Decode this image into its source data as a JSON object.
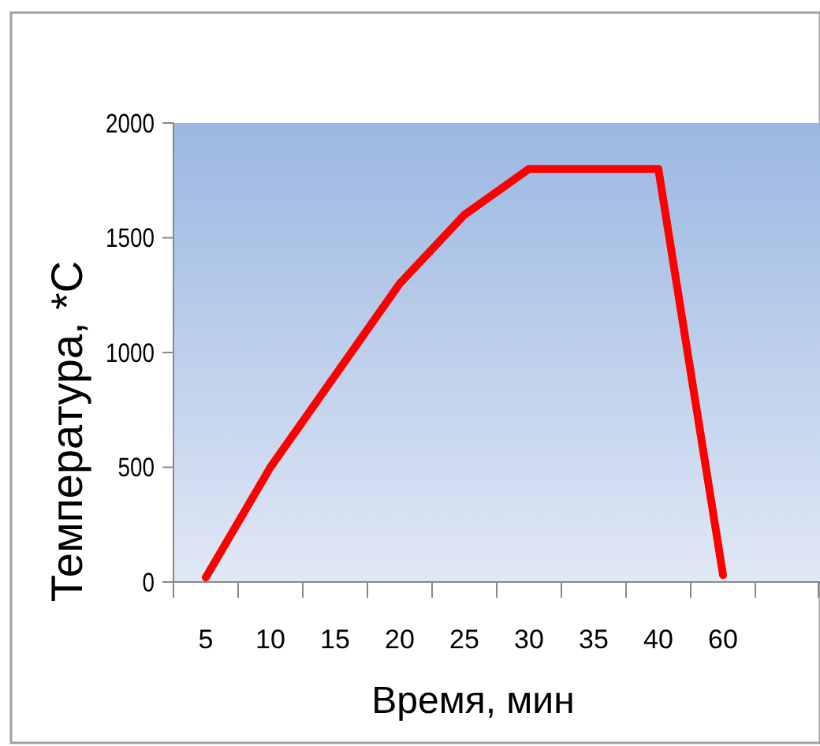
{
  "chart_data": {
    "type": "line",
    "xlabel": "Время, мин",
    "ylabel": "Температура,  *С",
    "categories": [
      "5",
      "10",
      "15",
      "20",
      "25",
      "30",
      "35",
      "40",
      "60",
      null
    ],
    "series": [
      {
        "color": "#ff0000",
        "values": [
          20,
          500,
          900,
          1300,
          1600,
          1800,
          1800,
          1800,
          30,
          null
        ]
      }
    ],
    "ylim": [
      0,
      2000
    ],
    "yticks": [
      0,
      500,
      1000,
      1500,
      2000
    ],
    "grid": false,
    "marker": "none",
    "line_style": "solid"
  }
}
